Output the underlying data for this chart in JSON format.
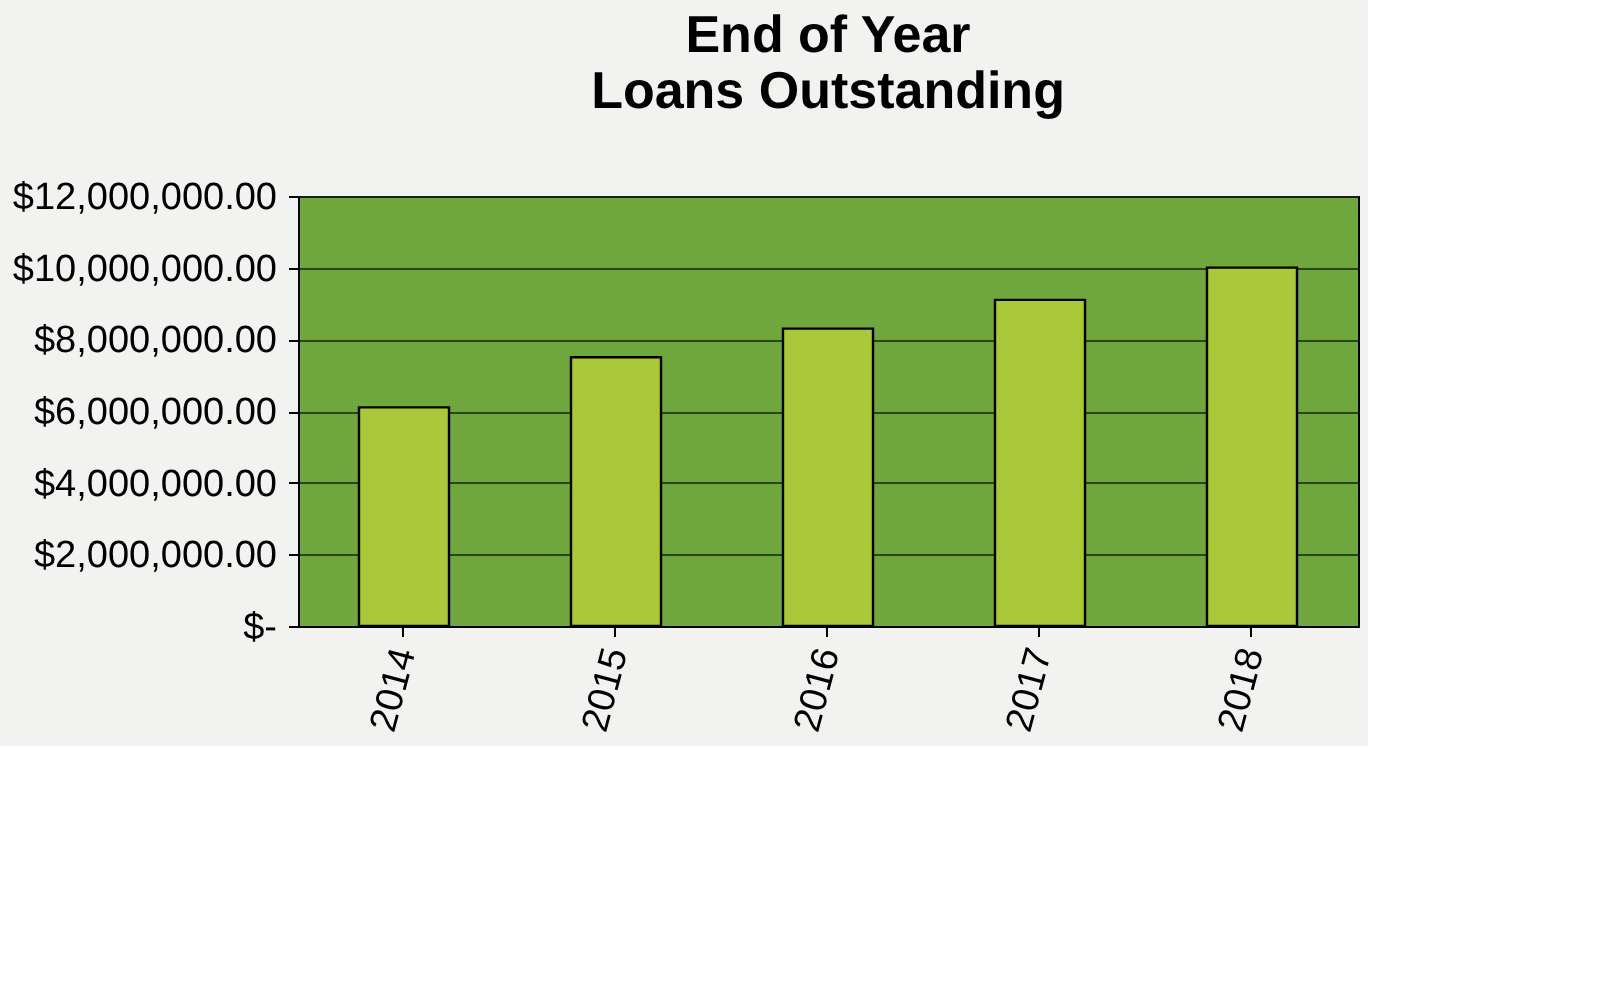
{
  "chart_data": {
    "type": "bar",
    "title": "End of Year\nLoans Outstanding",
    "categories": [
      "2014",
      "2015",
      "2016",
      "2017",
      "2018"
    ],
    "values": [
      6100000,
      7500000,
      8300000,
      9100000,
      10000000
    ],
    "color": "#a9c93a",
    "ylim": [
      0,
      12000000
    ],
    "yticks": [
      {
        "value": 0,
        "label": "$-"
      },
      {
        "value": 2000000,
        "label": "$2,000,000.00"
      },
      {
        "value": 4000000,
        "label": "$4,000,000.00"
      },
      {
        "value": 6000000,
        "label": "$6,000,000.00"
      },
      {
        "value": 8000000,
        "label": "$8,000,000.00"
      },
      {
        "value": 10000000,
        "label": "$10,000,000.00"
      },
      {
        "value": 12000000,
        "label": "$12,000,000.00"
      }
    ],
    "grid": "y"
  }
}
